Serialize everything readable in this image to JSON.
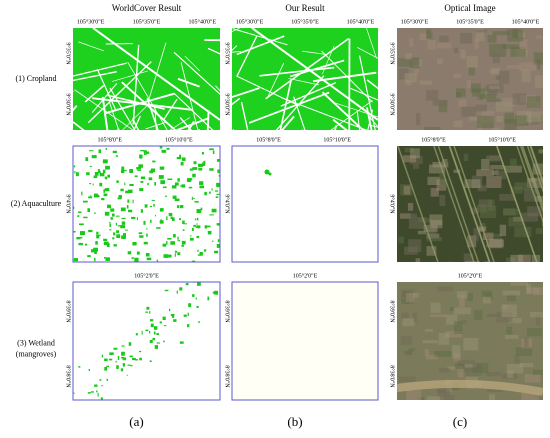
{
  "columns": [
    "WorldCover Result",
    "Our Result",
    "Optical Image"
  ],
  "rows": [
    {
      "label_lines": [
        "(1) Cropland"
      ],
      "lon": [
        "105°30'0\"E",
        "105°35'0\"E",
        "105°40'0\"E"
      ],
      "lat": [
        "9°35'0\"N",
        "9°30'0\"N"
      ]
    },
    {
      "label_lines": [
        "(2) Aquaculture"
      ],
      "lon": [
        "105°8'0\"E",
        "105°10'0\"E"
      ],
      "lat": [
        "9°4'0\"N"
      ]
    },
    {
      "label_lines": [
        "(3) Wetland",
        "(mangroves)"
      ],
      "lon": [
        "105°2'0\"E"
      ],
      "lat": [
        "8°39'0\"N",
        "8°38'0\"N"
      ]
    }
  ],
  "panel_labels": [
    "(a)",
    "(b)",
    "(c)"
  ]
}
